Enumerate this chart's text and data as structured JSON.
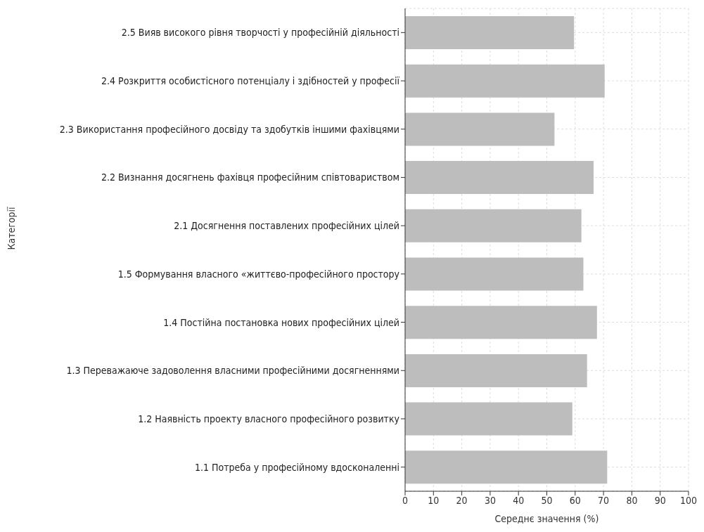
{
  "chart_data": {
    "type": "bar",
    "orientation": "horizontal",
    "xlabel": "Середнє значення (%)",
    "ylabel": "Категорії",
    "categories": [
      "2.5 Вияв високого рівня творчості у професійній діяльності",
      "2.4 Розкриття особистісного потенціалу і здібностей у професії",
      "2.3 Використання професійного досвіду та здобутків іншими фахівцями",
      "2.2 Визнання досягнень фахівця професійним співтовариством",
      "2.1 Досягнення поставлених професійних цілей",
      "1.5 Формування власного «життєво-професійного простору",
      "1.4 Постійна постановка нових професійних цілей",
      "1.3 Переважаюче задоволення власними професійними досягненнями",
      "1.2 Наявність проекту власного професійного розвитку",
      "1.1 Потреба у професійному вдосконаленні"
    ],
    "values": [
      59.6,
      70.4,
      52.7,
      66.5,
      62.2,
      62.9,
      67.7,
      64.2,
      59.0,
      71.3
    ],
    "color": "#bdbdbd",
    "xlim": [
      0,
      100
    ],
    "xticks": [
      0,
      10,
      20,
      30,
      40,
      50,
      60,
      70,
      80,
      90,
      100
    ],
    "grid": true,
    "legend": false
  }
}
